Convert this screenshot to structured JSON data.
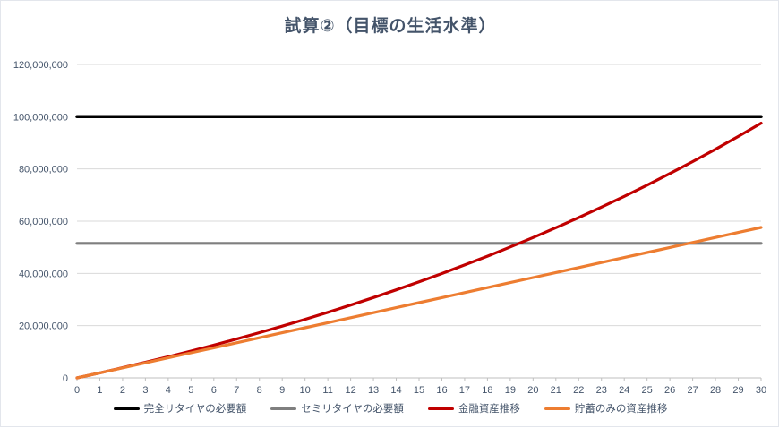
{
  "chart_data": {
    "type": "line",
    "title": "試算②（目標の生活水準）",
    "xlabel": "",
    "ylabel": "",
    "x": [
      0,
      1,
      2,
      3,
      4,
      5,
      6,
      7,
      8,
      9,
      10,
      11,
      12,
      13,
      14,
      15,
      16,
      17,
      18,
      19,
      20,
      21,
      22,
      23,
      24,
      25,
      26,
      27,
      28,
      29,
      30
    ],
    "xlim": [
      0,
      30
    ],
    "ylim": [
      0,
      120000000
    ],
    "y_ticks": [
      0,
      20000000,
      40000000,
      60000000,
      80000000,
      100000000,
      120000000
    ],
    "grid": "horizontal",
    "legend_position": "bottom",
    "series": [
      {
        "id": "full-retire-required",
        "name": "完全リタイヤの必要額",
        "color": "#000000",
        "width": 3.5,
        "constant": 100000000
      },
      {
        "id": "semi-retire-required",
        "name": "セミリタイヤの必要額",
        "color": "#7F7F7F",
        "width": 3.2,
        "constant": 51500000
      },
      {
        "id": "invested-assets",
        "name": "金融資産推移",
        "color": "#C00000",
        "width": 3.2,
        "values": [
          0,
          1920000,
          3900000,
          5960000,
          8080000,
          10280000,
          12550000,
          14890000,
          17320000,
          19830000,
          22420000,
          25100000,
          27880000,
          30740000,
          33710000,
          36780000,
          39950000,
          43220000,
          46610000,
          50120000,
          53740000,
          57490000,
          61360000,
          65370000,
          69510000,
          73800000,
          78230000,
          82810000,
          87540000,
          92440000,
          97500000
        ]
      },
      {
        "id": "savings-only-assets",
        "name": "貯蓄のみの資産推移",
        "color": "#ED7D31",
        "width": 3.2,
        "values": [
          0,
          1920000,
          3840000,
          5760000,
          7680000,
          9600000,
          11520000,
          13440000,
          15360000,
          17280000,
          19200000,
          21120000,
          23040000,
          24960000,
          26880000,
          28800000,
          30720000,
          32640000,
          34560000,
          36480000,
          38400000,
          40320000,
          42240000,
          44160000,
          46080000,
          48000000,
          49920000,
          51840000,
          53760000,
          55680000,
          57600000
        ]
      }
    ],
    "colors": {
      "tick_label": "#44546A",
      "title": "#44546A",
      "gridline": "#D9D9D9",
      "axis_line": "#BFBFBF"
    }
  }
}
